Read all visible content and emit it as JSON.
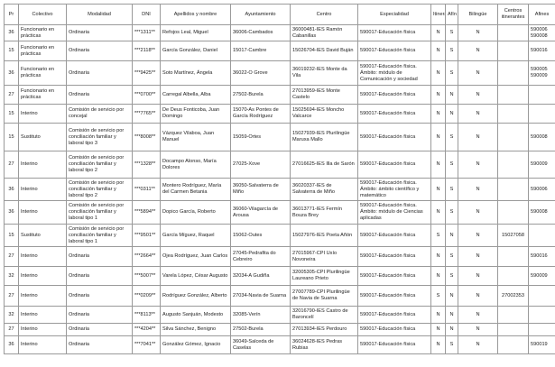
{
  "headers": [
    "Pr",
    "Colectivo",
    "Modalidad",
    "DNI",
    "Apellidos y nombre",
    "Ayuntamiento",
    "Centro",
    "Especialidad",
    "Itinerante",
    "Afín",
    "Bilingüe",
    "Centros itinerantes",
    "Afines"
  ],
  "rows": [
    [
      "36",
      "Funcionario en prácticas",
      "Ordinaria",
      "***1311**",
      "Refojos Leal, Miguel",
      "36006-Cambados",
      "36000481-IES Ramón Cabanillas",
      "590017-Educación física",
      "N",
      "S",
      "N",
      "",
      "590006 590008"
    ],
    [
      "15",
      "Funcionario en prácticas",
      "Ordinaria",
      "***2118**",
      "García González, Daniel",
      "15017-Cambre",
      "15026704-IES David Buján",
      "590017-Educación física",
      "N",
      "S",
      "N",
      "",
      "590016"
    ],
    [
      "36",
      "Funcionario en prácticas",
      "Ordinaria",
      "***9425**",
      "Soto Martínez, Ángela",
      "36022-O Grove",
      "36019232-IES Monte da Vila",
      "590017-Educación física. Ámbito: módulo de Comunicación y sociedad",
      "N",
      "S",
      "N",
      "",
      "590005 590009"
    ],
    [
      "27",
      "Funcionario en prácticas",
      "Ordinaria",
      "***0700**",
      "Carregal Albella, Alba",
      "27502-Burela",
      "27013959-IES Monte Castelo",
      "590017-Educación física",
      "N",
      "N",
      "N",
      "",
      ""
    ],
    [
      "15",
      "Interino",
      "Comisión de servicio por concejal",
      "***7765**",
      "De Deus Fonticoba, Juan Domingo",
      "15070-As Pontes de García Rodríguez",
      "15025694-IES Moncho Valcarce",
      "590017-Educación física",
      "N",
      "N",
      "N",
      "",
      ""
    ],
    [
      "15",
      "Sustituto",
      "Comisión de servicio por conciliación familiar y laboral tipo 3",
      "***8008**",
      "Vázquez Vilaboa, Juan Manuel",
      "15059-Ortes",
      "15027939-IES Plurilingüe Maruxa Mallo",
      "590017-Educación física",
      "N",
      "S",
      "N",
      "",
      "590008"
    ],
    [
      "27",
      "Interino",
      "Comisión de servicio por conciliación familiar y laboral tipo 2",
      "***1328**",
      "Docampo Alonso, María Dolores",
      "27025-Xove",
      "27016625-IES Illa de Sarón",
      "590017-Educación física",
      "N",
      "S",
      "N",
      "",
      "590009"
    ],
    [
      "36",
      "Interino",
      "Comisión de servicio por conciliación familiar y laboral tipo 2",
      "***0311**",
      "Montero Rodríguez, María del Carmen Betania",
      "36050-Salvaterra de Miño",
      "36020337-IES de Salvaterra de Miño",
      "590017-Educación física. Ámbito: ámbito científico y matemático",
      "N",
      "S",
      "N",
      "",
      "590006"
    ],
    [
      "36",
      "Interino",
      "Comisión de servicio por conciliación familiar y laboral tipo 1",
      "***5894**",
      "Dopico García, Roberto",
      "36060-Vilagarcía de Arousa",
      "36013771-IES Fermín Bouza Brey",
      "590017-Educación física. Ámbito: módulo de Ciencias aplicadas",
      "N",
      "S",
      "N",
      "",
      "590008"
    ],
    [
      "15",
      "Sustituto",
      "Comisión de servicio por conciliación familiar y laboral tipo 1",
      "***9501**",
      "García Míguez, Raquel",
      "15062-Outes",
      "15027976-IES Poeta Añón",
      "590017-Educación física",
      "S",
      "N",
      "N",
      "15027058",
      ""
    ],
    [
      "27",
      "Interino",
      "Ordinaria",
      "***2664**",
      "Ojea Rodríguez, Juan Carlos",
      "27045-Pedrafita do Cebreiro",
      "27015967-CPI Uxío Novoneira",
      "590017-Educación física",
      "N",
      "S",
      "N",
      "",
      "590016"
    ],
    [
      "32",
      "Interino",
      "Ordinaria",
      "***5007**",
      "Varela López, César Augusto",
      "32034-A Gudiña",
      "32005305-CPI Plurilingüe Laureano Prieto",
      "590017-Educación física",
      "N",
      "S",
      "N",
      "",
      "590009"
    ],
    [
      "27",
      "Interino",
      "Ordinaria",
      "***0209**",
      "Rodríguez González, Alberto",
      "27034-Navia de Suarna",
      "27007789-CPI Plurilingüe de Navia de Suarna",
      "590017-Educación física",
      "S",
      "N",
      "N",
      "27002353",
      ""
    ],
    [
      "32",
      "Interino",
      "Ordinaria",
      "***8113**",
      "Augusto Sanjuán, Modesto",
      "32085-Verín",
      "32016790-IES Castro de Baroncelí",
      "590017-Educación física",
      "N",
      "N",
      "N",
      "",
      ""
    ],
    [
      "27",
      "Interino",
      "Ordinaria",
      "***4204**",
      "Silva Sánchez, Benigno",
      "27502-Burela",
      "27013934-IES Perdouro",
      "590017-Educación física",
      "N",
      "N",
      "N",
      "",
      ""
    ],
    [
      "36",
      "Interino",
      "Ordinaria",
      "***7041**",
      "González Gómez, Ignacio",
      "36049-Salceda de Caselas",
      "36024628-IES Pedras Rubias",
      "590017-Educación física",
      "N",
      "S",
      "N",
      "",
      "590019"
    ]
  ]
}
